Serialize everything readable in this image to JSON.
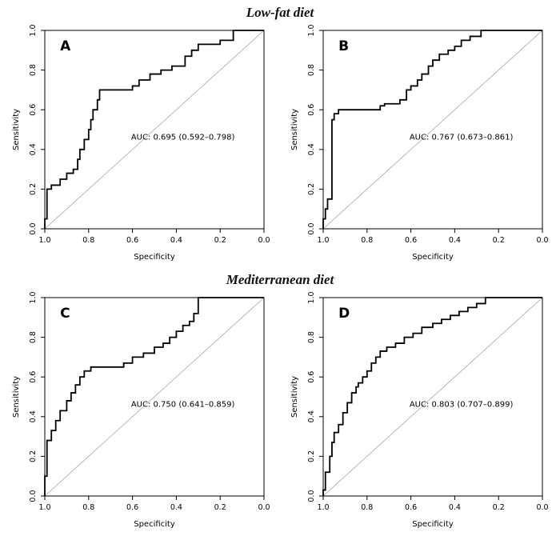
{
  "figure_titles": {
    "top": "Low-fat diet",
    "middle": "Mediterranean diet"
  },
  "colors": {
    "curve": "#000000",
    "diagonal": "#b8b8b8",
    "box": "#000000",
    "text": "#000000"
  },
  "chart_data": [
    {
      "type": "line",
      "subtype": "roc",
      "panel": "A",
      "section": "Low-fat diet",
      "auc_label": "AUC: 0.695 (0.592–0.798)",
      "xlabel": "Specificity",
      "ylabel": "Sensitivity",
      "xlim": [
        1.0,
        0.0
      ],
      "ylim": [
        0.0,
        1.0
      ],
      "x_ticks": [
        "1.0",
        "0.8",
        "0.6",
        "0.4",
        "0.2",
        "0.0"
      ],
      "y_ticks": [
        "0.0",
        "0.2",
        "0.4",
        "0.6",
        "0.8",
        "1.0"
      ],
      "grid": false,
      "diagonal_reference": true,
      "points": {
        "specificity": [
          1.0,
          0.99,
          0.97,
          0.93,
          0.9,
          0.87,
          0.85,
          0.84,
          0.82,
          0.8,
          0.79,
          0.78,
          0.76,
          0.75,
          0.73,
          0.6,
          0.57,
          0.52,
          0.47,
          0.42,
          0.36,
          0.33,
          0.3,
          0.2,
          0.14,
          0.1,
          0.0
        ],
        "sensitivity": [
          0.0,
          0.05,
          0.2,
          0.22,
          0.25,
          0.28,
          0.3,
          0.35,
          0.4,
          0.45,
          0.5,
          0.55,
          0.6,
          0.65,
          0.7,
          0.7,
          0.72,
          0.75,
          0.78,
          0.8,
          0.82,
          0.87,
          0.9,
          0.93,
          0.95,
          1.0,
          1.0
        ]
      }
    },
    {
      "type": "line",
      "subtype": "roc",
      "panel": "B",
      "section": "Low-fat diet",
      "auc_label": "AUC: 0.767 (0.673–0.861)",
      "xlabel": "Specificity",
      "ylabel": "Sensitivity",
      "xlim": [
        1.0,
        0.0
      ],
      "ylim": [
        0.0,
        1.0
      ],
      "x_ticks": [
        "1.0",
        "0.8",
        "0.6",
        "0.4",
        "0.2",
        "0.0"
      ],
      "y_ticks": [
        "0.0",
        "0.2",
        "0.4",
        "0.6",
        "0.8",
        "1.0"
      ],
      "grid": false,
      "diagonal_reference": true,
      "points": {
        "specificity": [
          1.0,
          0.99,
          0.98,
          0.96,
          0.95,
          0.93,
          0.9,
          0.74,
          0.72,
          0.65,
          0.62,
          0.6,
          0.57,
          0.55,
          0.52,
          0.5,
          0.47,
          0.43,
          0.4,
          0.37,
          0.33,
          0.28,
          0.25,
          0.0
        ],
        "sensitivity": [
          0.0,
          0.05,
          0.1,
          0.15,
          0.55,
          0.58,
          0.6,
          0.6,
          0.62,
          0.63,
          0.65,
          0.7,
          0.72,
          0.75,
          0.78,
          0.82,
          0.85,
          0.88,
          0.9,
          0.92,
          0.95,
          0.97,
          1.0,
          1.0
        ]
      }
    },
    {
      "type": "line",
      "subtype": "roc",
      "panel": "C",
      "section": "Mediterranean diet",
      "auc_label": "AUC: 0.750 (0.641–0.859)",
      "xlabel": "Specificity",
      "ylabel": "Sensitivity",
      "xlim": [
        1.0,
        0.0
      ],
      "ylim": [
        0.0,
        1.0
      ],
      "x_ticks": [
        "1.0",
        "0.8",
        "0.6",
        "0.4",
        "0.2",
        "0.0"
      ],
      "y_ticks": [
        "0.0",
        "0.2",
        "0.4",
        "0.6",
        "0.8",
        "1.0"
      ],
      "grid": false,
      "diagonal_reference": true,
      "points": {
        "specificity": [
          1.0,
          0.99,
          0.97,
          0.95,
          0.93,
          0.9,
          0.88,
          0.86,
          0.84,
          0.82,
          0.79,
          0.77,
          0.64,
          0.6,
          0.55,
          0.5,
          0.46,
          0.43,
          0.4,
          0.37,
          0.34,
          0.32,
          0.3,
          0.28,
          0.0
        ],
        "sensitivity": [
          0.0,
          0.1,
          0.28,
          0.33,
          0.38,
          0.43,
          0.48,
          0.52,
          0.56,
          0.6,
          0.63,
          0.65,
          0.65,
          0.67,
          0.7,
          0.72,
          0.75,
          0.77,
          0.8,
          0.83,
          0.86,
          0.88,
          0.92,
          1.0,
          1.0
        ]
      }
    },
    {
      "type": "line",
      "subtype": "roc",
      "panel": "D",
      "section": "Mediterranean diet",
      "auc_label": "AUC: 0.803 (0.707–0.899)",
      "xlabel": "Specificity",
      "ylabel": "Sensitivity",
      "xlim": [
        1.0,
        0.0
      ],
      "ylim": [
        0.0,
        1.0
      ],
      "x_ticks": [
        "1.0",
        "0.8",
        "0.6",
        "0.4",
        "0.2",
        "0.0"
      ],
      "y_ticks": [
        "0.0",
        "0.2",
        "0.4",
        "0.6",
        "0.8",
        "1.0"
      ],
      "grid": false,
      "diagonal_reference": true,
      "points": {
        "specificity": [
          1.0,
          0.99,
          0.97,
          0.96,
          0.95,
          0.93,
          0.91,
          0.89,
          0.87,
          0.85,
          0.84,
          0.82,
          0.8,
          0.78,
          0.76,
          0.74,
          0.71,
          0.67,
          0.63,
          0.59,
          0.55,
          0.5,
          0.46,
          0.42,
          0.38,
          0.34,
          0.3,
          0.26,
          0.22,
          0.0
        ],
        "sensitivity": [
          0.0,
          0.03,
          0.12,
          0.2,
          0.27,
          0.32,
          0.36,
          0.42,
          0.47,
          0.52,
          0.55,
          0.57,
          0.6,
          0.63,
          0.67,
          0.7,
          0.73,
          0.75,
          0.77,
          0.8,
          0.82,
          0.85,
          0.87,
          0.89,
          0.91,
          0.93,
          0.95,
          0.97,
          1.0,
          1.0
        ]
      }
    }
  ]
}
